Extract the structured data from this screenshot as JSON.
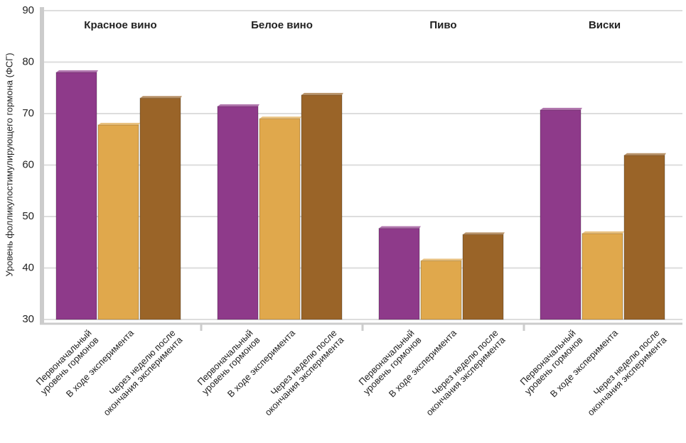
{
  "chart_data": {
    "type": "bar",
    "y_label": "Уровень фолликулостимулирующего гормона (ФСГ)",
    "categories": [
      "Красное вино",
      "Белое вино",
      "Пиво",
      "Виски"
    ],
    "series": [
      {
        "name": "Первоначальный\nуровень гормонов",
        "color": "#8e3a8a",
        "values": [
          78,
          71.4,
          47.7,
          70.7
        ]
      },
      {
        "name": "В ходе эксперимента",
        "color": "#e0a84c",
        "values": [
          67.8,
          69,
          41.4,
          46.7
        ]
      },
      {
        "name": "Через неделю после\nокончания эксперимента",
        "color": "#9a6428",
        "values": [
          73,
          73.6,
          46.5,
          61.9
        ]
      }
    ],
    "ylim": [
      30,
      90
    ],
    "yticks": [
      30,
      40,
      50,
      60,
      70,
      80,
      90
    ],
    "grid": true
  }
}
